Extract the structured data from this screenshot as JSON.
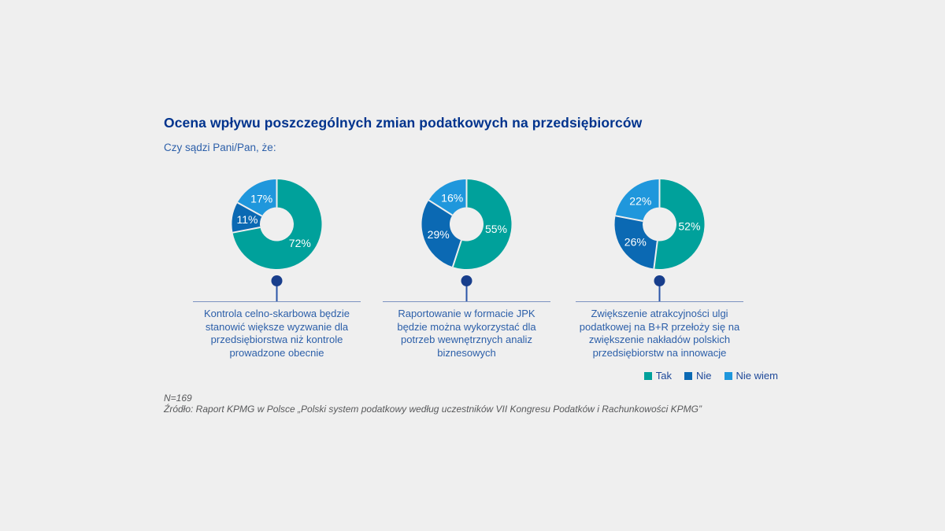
{
  "title": "Ocena wpływu poszczególnych zmian podatkowych na przedsiębiorców",
  "subtitle": "Czy sądzi Pani/Pan, że:",
  "palette": {
    "background": "#EFEFEF",
    "title_blue": "#00338D",
    "text_blue": "#2C5FA9",
    "legend_text": "#1D4899",
    "rule_blue": "#7C92C0",
    "stem_blue": "#2B55A8",
    "dot_navy": "#183E8C",
    "label_white": "#FFFFFF",
    "footnote_gray": "#58595B"
  },
  "chart_data": {
    "type": "pie",
    "subtype": "donut",
    "value_format": "percent",
    "legend_position": "bottom-right",
    "categories": [
      "Tak",
      "Nie",
      "Nie wiem"
    ],
    "colors": [
      "#00A19B",
      "#0B69B3",
      "#1F97DC"
    ],
    "charts": [
      {
        "caption": "Kontrola celno-skarbowa będzie stanowić większe wyzwanie dla przedsiębiorstwa niż kontrole prowadzone obecnie",
        "values": [
          72,
          11,
          17
        ],
        "labels": [
          "72%",
          "11%",
          "17%"
        ]
      },
      {
        "caption": "Raportowanie w formacie JPK będzie można wykorzystać dla potrzeb wewnętrznych analiz biznesowych",
        "values": [
          55,
          29,
          16
        ],
        "labels": [
          "55%",
          "29%",
          "16%"
        ]
      },
      {
        "caption": "Zwiększenie atrakcyjności ulgi podatkowej na B+R przełoży się na zwiększenie nakładów polskich przedsiębiorstw na innowacje",
        "values": [
          52,
          26,
          22
        ],
        "labels": [
          "52%",
          "26%",
          "22%"
        ]
      }
    ]
  },
  "footnote": {
    "n": "N=169",
    "source": "Źródło: Raport KPMG w Polsce „Polski system podatkowy według uczestników VII Kongresu Podatków i Rachunkowości KPMG”"
  }
}
